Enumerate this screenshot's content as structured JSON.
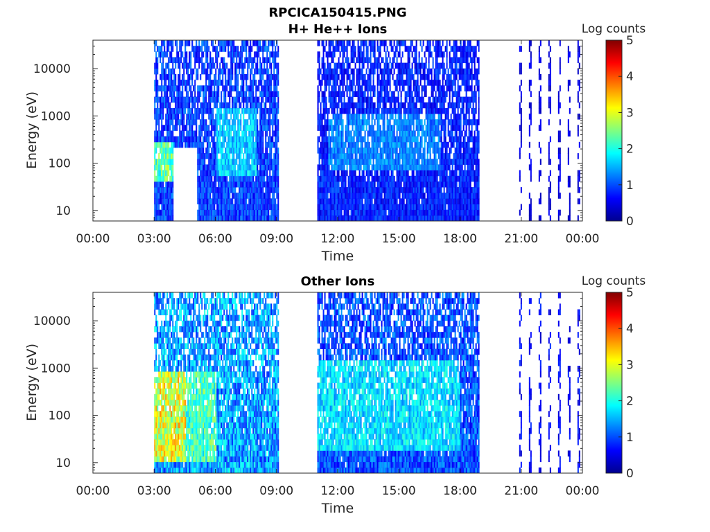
{
  "figure": {
    "title_line1": "RPCICA150415.PNG",
    "title_line2": "H+ He++ Ions"
  },
  "chart_data": [
    {
      "type": "heatmap",
      "title": "H+ He++ Ions",
      "xlabel": "Time",
      "ylabel": "Energy (eV)",
      "x_tick_labels": [
        "00:00",
        "03:00",
        "06:00",
        "09:00",
        "12:00",
        "15:00",
        "18:00",
        "21:00",
        "00:00"
      ],
      "x_range_hours": [
        0,
        24
      ],
      "y_tick_labels": [
        "10",
        "100",
        "1000",
        "10000"
      ],
      "y_tick_values": [
        10,
        100,
        1000,
        10000
      ],
      "y_scale": "log",
      "ylim": [
        6,
        40000
      ],
      "colorbar": {
        "label": "Log counts",
        "ticks": [
          "0",
          "1",
          "2",
          "3",
          "4",
          "5"
        ],
        "range": [
          0,
          5
        ],
        "colormap": "jet"
      },
      "segments": [
        {
          "start_h": 3.0,
          "end_h": 9.1,
          "level": 0.9,
          "note": "continuous"
        },
        {
          "start_h": 11.0,
          "end_h": 18.9,
          "level": 0.75,
          "note": "continuous"
        },
        {
          "start_h": 20.9,
          "end_h": 23.9,
          "level": 0.45,
          "note": "sparse sweeps"
        }
      ],
      "gaps": [
        {
          "start_h": 3.9,
          "end_h": 5.1,
          "emax_ev": 220
        }
      ],
      "features": [
        {
          "start_h": 3.0,
          "end_h": 3.9,
          "emin_ev": 40,
          "emax_ev": 300,
          "level": 2.4
        },
        {
          "start_h": 6.0,
          "end_h": 8.0,
          "emin_ev": 60,
          "emax_ev": 1500,
          "level": 1.7
        },
        {
          "start_h": 11.5,
          "end_h": 17.0,
          "emin_ev": 80,
          "emax_ev": 1200,
          "level": 1.3
        }
      ]
    },
    {
      "type": "heatmap",
      "title": "Other Ions",
      "xlabel": "Time",
      "ylabel": "Energy (eV)",
      "x_tick_labels": [
        "00:00",
        "03:00",
        "06:00",
        "09:00",
        "12:00",
        "15:00",
        "18:00",
        "21:00",
        "00:00"
      ],
      "x_range_hours": [
        0,
        24
      ],
      "y_tick_labels": [
        "10",
        "100",
        "1000",
        "10000"
      ],
      "y_tick_values": [
        10,
        100,
        1000,
        10000
      ],
      "y_scale": "log",
      "ylim": [
        6,
        40000
      ],
      "colorbar": {
        "label": "Log counts",
        "ticks": [
          "0",
          "1",
          "2",
          "3",
          "4",
          "5"
        ],
        "range": [
          0,
          5
        ],
        "colormap": "jet"
      },
      "segments": [
        {
          "start_h": 3.0,
          "end_h": 9.1,
          "level": 1.4,
          "note": "continuous"
        },
        {
          "start_h": 11.0,
          "end_h": 18.9,
          "level": 1.0,
          "note": "continuous"
        },
        {
          "start_h": 20.9,
          "end_h": 23.9,
          "level": 0.6,
          "note": "sparse sweeps"
        }
      ],
      "gaps": [],
      "features": [
        {
          "start_h": 3.0,
          "end_h": 4.5,
          "emin_ev": 10,
          "emax_ev": 800,
          "level": 3.1
        },
        {
          "start_h": 4.5,
          "end_h": 6.0,
          "emin_ev": 10,
          "emax_ev": 800,
          "level": 2.3
        },
        {
          "start_h": 11.0,
          "end_h": 18.0,
          "emin_ev": 20,
          "emax_ev": 1500,
          "level": 1.8
        }
      ]
    }
  ]
}
